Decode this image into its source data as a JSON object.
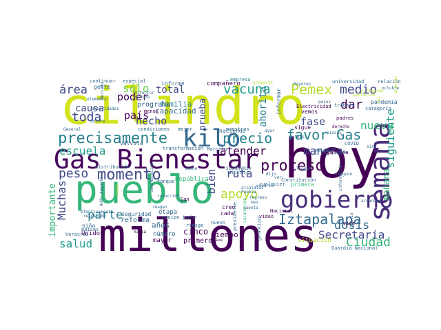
{
  "palette": {
    "dark_purple": "#440154",
    "purple": "#482878",
    "indigo": "#3e4989",
    "blue": "#31688e",
    "teal": "#26828e",
    "green_teal": "#1f9e89",
    "green": "#35b779",
    "light_green": "#6ece58",
    "lime": "#b5de2b",
    "yellow": "#fde725"
  },
  "words": [
    {
      "text": "millones",
      "color": "#440154"
    },
    {
      "text": "cilindro",
      "color": "#d2e21b"
    },
    {
      "text": "hoy",
      "color": "#440154"
    },
    {
      "text": "pueblo",
      "color": "#35b779"
    },
    {
      "text": "Gas Bienestar",
      "color": "#46085c"
    },
    {
      "text": "semana",
      "color": "#482878"
    },
    {
      "text": "gobierno",
      "color": "#472c7a"
    },
    {
      "text": "kilo",
      "color": "#31688e"
    },
    {
      "text": "precisamente",
      "color": "#26828e"
    },
    {
      "text": "momento",
      "color": "#3e4989"
    },
    {
      "text": "proceso",
      "color": "#440154"
    },
    {
      "text": "Iztapalapa",
      "color": "#31688e"
    },
    {
      "text": "precio",
      "color": "#26828e"
    },
    {
      "text": "Pemex",
      "color": "#b5de2b"
    },
    {
      "text": "favor Gas",
      "color": "#26828e"
    },
    {
      "text": "vacuna",
      "color": "#1f9e89"
    },
    {
      "text": "toda",
      "color": "#3e4989"
    },
    {
      "text": "dar",
      "color": "#440154"
    },
    {
      "text": "medio",
      "color": "#3e4989"
    },
    {
      "text": "dosis",
      "color": "#31688e"
    },
    {
      "text": "apoyo",
      "color": "#b5de2b"
    },
    {
      "text": "Ciudad",
      "color": "#35b779"
    },
    {
      "text": "Secretaría",
      "color": "#3e4989"
    },
    {
      "text": "peso",
      "color": "#3e4989"
    },
    {
      "text": "área",
      "color": "#3e4989"
    },
    {
      "text": "salud",
      "color": "#1f9e89"
    },
    {
      "text": "parte",
      "color": "#26828e"
    },
    {
      "text": "Muchas",
      "color": "#3e4989"
    },
    {
      "text": "escuela",
      "color": "#1f9e89"
    },
    {
      "text": "atender",
      "color": "#440154"
    },
    {
      "text": "nueva",
      "color": "#35b779"
    },
    {
      "text": "siguiente",
      "color": "#1f9e89"
    },
    {
      "text": "manera",
      "color": "#3e4989"
    },
    {
      "text": "ruta",
      "color": "#3e4989"
    },
    {
      "text": "bien",
      "color": "#3e4989"
    },
    {
      "text": "hecho",
      "color": "#3e4989"
    },
    {
      "text": "causa",
      "color": "#3e4989"
    },
    {
      "text": "poder",
      "color": "#440154"
    },
    {
      "text": "total",
      "color": "#3e4989"
    },
    {
      "text": "sólo",
      "color": "#6ece58"
    },
    {
      "text": "país",
      "color": "#440154"
    },
    {
      "text": "fase",
      "color": "#3e4989"
    },
    {
      "text": "ahorita",
      "color": "#26828e"
    },
    {
      "text": "prueba",
      "color": "#3e4989"
    },
    {
      "text": "importante",
      "color": "#35b779"
    },
    {
      "text": "mañana",
      "color": "#35b779"
    },
    {
      "text": "familia",
      "color": "#26828e"
    },
    {
      "text": "capacidad",
      "color": "#31688e"
    },
    {
      "text": "programa",
      "color": "#31688e"
    },
    {
      "text": "reforma",
      "color": "#31688e"
    },
    {
      "text": "años",
      "color": "#31688e"
    },
    {
      "text": "cinco",
      "color": "#440154"
    },
    {
      "text": "tiempo",
      "color": "#440154"
    },
    {
      "text": "primero",
      "color": "#440154"
    },
    {
      "text": "mayor",
      "color": "#440154"
    },
    {
      "text": "Unidos",
      "color": "#440154"
    },
    {
      "text": "número",
      "color": "#31688e"
    },
    {
      "text": "niño",
      "color": "#31688e"
    },
    {
      "text": "seguridad",
      "color": "#31688e"
    },
    {
      "text": "situación",
      "color": "#b5de2b"
    },
    {
      "text": "Guardia Nacional",
      "color": "#31688e"
    },
    {
      "text": "empresa",
      "color": "#26828e"
    },
    {
      "text": "compañero",
      "color": "#440154"
    },
    {
      "text": "informe",
      "color": "#31688e"
    },
    {
      "text": "gente",
      "color": "#31688e"
    },
    {
      "text": "continuar",
      "color": "#31688e"
    },
    {
      "text": "especial",
      "color": "#31688e"
    },
    {
      "text": "universidad",
      "color": "#31688e"
    },
    {
      "text": "relación",
      "color": "#31688e"
    },
    {
      "text": "octubre",
      "color": "#31688e"
    },
    {
      "text": "pandemia",
      "color": "#31688e"
    },
    {
      "text": "categoría",
      "color": "#31688e"
    },
    {
      "text": "Electricidad",
      "color": "#440154"
    },
    {
      "text": "vemos",
      "color": "#440154"
    },
    {
      "text": "padres",
      "color": "#440154"
    },
    {
      "text": "trabajo",
      "color": "#31688e"
    },
    {
      "text": "informar",
      "color": "#31688e"
    },
    {
      "text": "sigue",
      "color": "#440154"
    },
    {
      "text": "haciendo",
      "color": "#31688e"
    },
    {
      "text": "condiciones",
      "color": "#31688e"
    },
    {
      "text": "mejor",
      "color": "#31688e"
    },
    {
      "text": "maestros",
      "color": "#31688e"
    },
    {
      "text": "válvula",
      "color": "#31688e"
    },
    {
      "text": "transformación",
      "color": "#31688e"
    },
    {
      "text": "Marcelo",
      "color": "#31688e"
    },
    {
      "text": "COVID",
      "color": "#31688e"
    },
    {
      "text": "persona",
      "color": "#440154"
    },
    {
      "text": "Constitución",
      "color": "#31688e"
    },
    {
      "text": "cualquier",
      "color": "#31688e"
    },
    {
      "text": "primera",
      "color": "#35b779"
    },
    {
      "text": "video",
      "color": "#440154"
    },
    {
      "text": "Nacional",
      "color": "#440154"
    },
    {
      "text": "distribución",
      "color": "#31688e"
    },
    {
      "text": "República",
      "color": "#35b779"
    },
    {
      "text": "tanque",
      "color": "#31688e"
    },
    {
      "text": "cada",
      "color": "#440154"
    },
    {
      "text": "creo",
      "color": "#440154"
    },
    {
      "text": "etapa",
      "color": "#31688e"
    },
    {
      "text": "equipo",
      "color": "#31688e"
    },
    {
      "text": "justo",
      "color": "#31688e"
    },
    {
      "text": "nuevo",
      "color": "#31688e"
    },
    {
      "text": "riesgo",
      "color": "#31688e"
    },
    {
      "text": "General",
      "color": "#31688e"
    },
    {
      "text": "Veracruz",
      "color": "#31688e"
    },
    {
      "text": "países",
      "color": "#31688e"
    },
    {
      "text": "presidente",
      "color": "#31688e"
    },
    {
      "text": "vacunación",
      "color": "#35b779"
    },
    {
      "text": "proyecto",
      "color": "#b5de2b"
    },
    {
      "text": "gracias",
      "color": "#b5de2b"
    },
    {
      "text": "luz",
      "color": "#b5de2b"
    },
    {
      "text": "San",
      "color": "#440154"
    },
    {
      "text": "clave",
      "color": "#440154"
    },
    {
      "text": "vida",
      "color": "#440154"
    },
    {
      "text": "hacia",
      "color": "#440154"
    },
    {
      "text": "cosa",
      "color": "#b5de2b"
    },
    {
      "text": "grupo",
      "color": "#31688e"
    },
    {
      "text": "director",
      "color": "#31688e"
    },
    {
      "text": "menos",
      "color": "#440154"
    },
    {
      "text": "elemento",
      "color": "#31688e"
    },
    {
      "text": "quiere",
      "color": "#31688e"
    },
    {
      "text": "autoridades",
      "color": "#31688e"
    },
    {
      "text": "Mercado",
      "color": "#31688e"
    },
    {
      "text": "imagen",
      "color": "#31688e"
    },
    {
      "text": "reducción",
      "color": "#31688e"
    },
    {
      "text": "comunicación",
      "color": "#31688e"
    },
    {
      "text": "resultado",
      "color": "#31688e"
    },
    {
      "text": "Efectivamente",
      "color": "#31688e"
    },
    {
      "text": "Adán Augusto",
      "color": "#31688e"
    },
    {
      "text": "ir",
      "color": "#31688e"
    },
    {
      "text": "mes",
      "color": "#31688e"
    },
    {
      "text": "SECRETARIO",
      "color": "#31688e"
    },
    {
      "text": "alcaldía",
      "color": "#31688e"
    },
    {
      "text": "viene",
      "color": "#31688e"
    },
    {
      "text": "llegar",
      "color": "#31688e"
    },
    {
      "text": "Puebla",
      "color": "#31688e"
    },
    {
      "text": "ver",
      "color": "#31688e"
    },
    {
      "text": "alcaldías",
      "color": "#31688e"
    },
    {
      "text": "regreso",
      "color": "#31688e"
    },
    {
      "text": "ninguno",
      "color": "#31688e"
    },
    {
      "text": "información",
      "color": "#31688e"
    },
    {
      "text": "arranque",
      "color": "#31688e"
    },
    {
      "text": "pueda",
      "color": "#31688e"
    },
    {
      "text": "sino",
      "color": "#31688e"
    },
    {
      "text": "población",
      "color": "#b5de2b"
    },
    {
      "text": "protegida",
      "color": "#b5de2b"
    },
    {
      "text": "garantizar",
      "color": "#31688e"
    },
    {
      "text": "cuenta",
      "color": "#31688e"
    },
    {
      "text": "usuario",
      "color": "#31688e"
    },
    {
      "text": "dijo",
      "color": "#31688e"
    },
    {
      "text": "México",
      "color": "#31688e"
    },
    {
      "text": "piezas",
      "color": "#31688e"
    },
    {
      "text": "derecho",
      "color": "#440154"
    },
    {
      "text": "Defensa",
      "color": "#31688e"
    },
    {
      "text": "pesos",
      "color": "#31688e"
    },
    {
      "text": "ayer",
      "color": "#31688e"
    },
    {
      "text": "Mayores",
      "color": "#31688e"
    },
    {
      "text": "inicio",
      "color": "#31688e"
    },
    {
      "text": "cuidado",
      "color": "#b5de2b"
    }
  ]
}
